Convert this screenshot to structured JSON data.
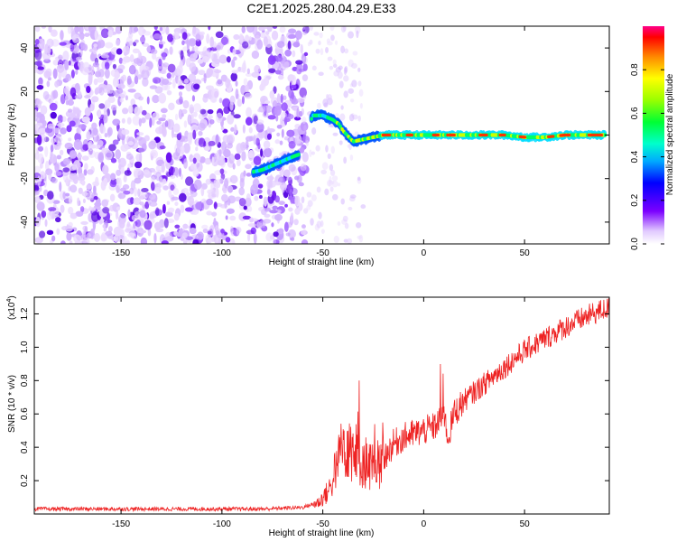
{
  "title": "C2E1.2025.280.04.29.E33",
  "colors": {
    "line": "#ee2222",
    "spectrum_ridge": [
      "#6a00ff",
      "#0055ff",
      "#00ddff",
      "#00ff66",
      "#ccff00",
      "#ff3300"
    ]
  },
  "chart_data": [
    {
      "type": "heatmap",
      "xlabel": "Height of straight line (km)",
      "ylabel": "Frequency (Hz)",
      "xlim": [
        -193,
        92
      ],
      "ylim": [
        -50,
        50
      ],
      "xticks": [
        -150,
        -100,
        -50,
        0,
        50
      ],
      "yticks": [
        -40,
        -20,
        0,
        20,
        40
      ],
      "colorbar": {
        "label": "Normalized spectral amplitude",
        "range": [
          0,
          1
        ],
        "ticks": [
          "0.0",
          "0.2",
          "0.4",
          "0.6",
          "0.8"
        ],
        "colormap": "rainbow (white/violet → red)"
      },
      "ridge": [
        [
          -85,
          -17
        ],
        [
          -80,
          -16
        ],
        [
          -75,
          -14
        ],
        [
          -70,
          -12
        ],
        [
          -65,
          -10
        ],
        [
          -62,
          -9
        ],
        [
          -55,
          9
        ],
        [
          -50,
          9
        ],
        [
          -45,
          7
        ],
        [
          -42,
          5
        ],
        [
          -40,
          2
        ],
        [
          -38,
          0
        ],
        [
          -35,
          -3
        ],
        [
          -30,
          -2
        ],
        [
          -25,
          -1
        ],
        [
          -20,
          0
        ],
        [
          0,
          0
        ],
        [
          20,
          0
        ],
        [
          40,
          0
        ],
        [
          50,
          -1
        ],
        [
          60,
          -1
        ],
        [
          70,
          0
        ],
        [
          80,
          0
        ],
        [
          90,
          0
        ]
      ],
      "noise_extent_km": [
        -193,
        -58
      ]
    },
    {
      "type": "line",
      "xlabel": "Height of straight line (km)",
      "ylabel": "SNR (10 * v/v)",
      "y_multiplier": "(x10",
      "y_multiplier_exp": "4",
      "xlim": [
        -193,
        92
      ],
      "ylim": [
        0,
        1.3
      ],
      "xticks": [
        -150,
        -100,
        -50,
        0,
        50
      ],
      "yticks": [
        0.2,
        0.4,
        0.6,
        0.8,
        1.0,
        1.2
      ],
      "series": [
        {
          "envelope_x": [
            -193,
            -80,
            -60,
            -52,
            -47,
            -44,
            -41,
            -38,
            -35,
            -30,
            -25,
            -22,
            -15,
            -10,
            -5,
            0,
            5,
            8,
            10,
            12,
            15,
            20,
            30,
            40,
            50,
            60,
            70,
            80,
            90
          ],
          "envelope_y": [
            0.03,
            0.03,
            0.04,
            0.07,
            0.14,
            0.25,
            0.4,
            0.45,
            0.38,
            0.32,
            0.28,
            0.3,
            0.42,
            0.46,
            0.48,
            0.5,
            0.52,
            0.56,
            0.6,
            0.45,
            0.6,
            0.68,
            0.78,
            0.88,
            0.98,
            1.05,
            1.12,
            1.18,
            1.23
          ]
        }
      ]
    }
  ]
}
